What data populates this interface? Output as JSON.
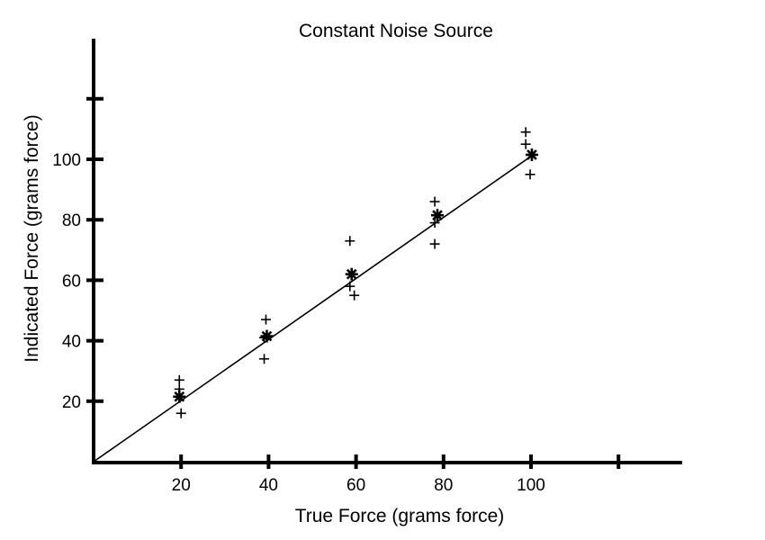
{
  "chart_data": {
    "type": "scatter",
    "title": "Constant Noise Source",
    "xlabel": "True Force (grams force)",
    "ylabel": "Indicated Force (grams force)",
    "x_ticks": [
      20,
      40,
      60,
      80,
      100,
      120
    ],
    "x_tick_labels": [
      "20",
      "40",
      "60",
      "80",
      "100",
      ""
    ],
    "y_ticks": [
      20,
      40,
      60,
      80,
      100,
      120
    ],
    "y_tick_labels": [
      "20",
      "40",
      "60",
      "80",
      "100",
      ""
    ],
    "xlim": [
      0,
      135
    ],
    "ylim": [
      0,
      138
    ],
    "grid": false,
    "series": [
      {
        "marker": "plus",
        "points": [
          [
            19.6,
            27
          ],
          [
            19.6,
            24
          ],
          [
            20.0,
            16
          ],
          [
            39.4,
            47
          ],
          [
            39.0,
            41
          ],
          [
            39.0,
            34
          ],
          [
            58.6,
            73
          ],
          [
            58.6,
            58
          ],
          [
            59.6,
            55
          ],
          [
            78.0,
            86
          ],
          [
            78.0,
            79
          ],
          [
            78.0,
            72
          ],
          [
            98.8,
            109
          ],
          [
            98.8,
            105
          ],
          [
            99.8,
            95
          ]
        ]
      },
      {
        "marker": "star",
        "points": [
          [
            19.6,
            21.5
          ],
          [
            39.6,
            41.5
          ],
          [
            59.0,
            62
          ],
          [
            78.6,
            81.5
          ],
          [
            100.2,
            101.5
          ]
        ]
      },
      {
        "marker": "line",
        "points": [
          [
            0,
            0
          ],
          [
            100.8,
            101.8
          ]
        ]
      }
    ],
    "colors": {
      "ink": "#000000",
      "background": "#ffffff"
    }
  }
}
